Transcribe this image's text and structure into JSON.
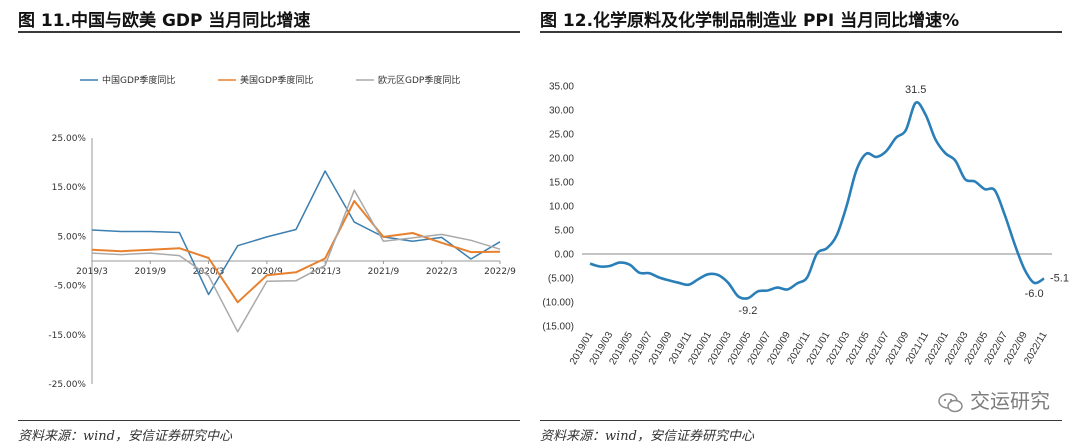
{
  "left": {
    "title": "图 11.中国与欧美 GDP 当月同比增速",
    "source": "资料来源：wind，安信证券研究中心"
  },
  "right": {
    "title": "图 12.化学原料及化学制品制造业 PPI 当月同比增速%",
    "source": "资料来源：wind，安信证券研究中心"
  },
  "watermark": "交运研究",
  "chart_data": [
    {
      "type": "line",
      "title": "图 11.中国与欧美 GDP 当月同比增速",
      "categories": [
        "2019/3",
        "2019/6",
        "2019/9",
        "2019/12",
        "2020/3",
        "2020/6",
        "2020/9",
        "2020/12",
        "2021/3",
        "2021/6",
        "2021/9",
        "2021/12",
        "2022/3",
        "2022/6",
        "2022/9"
      ],
      "x_tick_labels": [
        "2019/3",
        "2019/9",
        "2020/3",
        "2020/9",
        "2021/3",
        "2021/9",
        "2022/3",
        "2022/9"
      ],
      "y_tick_labels": [
        "25.00%",
        "15.00%",
        "5.00%",
        "-5.00%",
        "-15.00%",
        "-25.00%"
      ],
      "ylim": [
        -25,
        25
      ],
      "grid": false,
      "legend": "top",
      "colors": {
        "china": "#3b7fb0",
        "us": "#e8812f",
        "eu": "#a9a9a9"
      },
      "series": [
        {
          "name": "中国GDP季度同比",
          "values": [
            6.3,
            6.0,
            6.0,
            5.8,
            -6.8,
            3.1,
            4.9,
            6.4,
            18.3,
            7.9,
            4.9,
            4.0,
            4.8,
            0.4,
            3.9
          ]
        },
        {
          "name": "美国GDP季度同比",
          "values": [
            2.3,
            2.0,
            2.3,
            2.6,
            0.6,
            -8.4,
            -2.9,
            -2.3,
            0.5,
            12.2,
            4.9,
            5.7,
            3.7,
            1.8,
            1.9
          ]
        },
        {
          "name": "欧元区GDP季度同比",
          "values": [
            1.6,
            1.3,
            1.6,
            1.1,
            -3.0,
            -14.4,
            -4.1,
            -4.0,
            -0.9,
            14.4,
            4.0,
            4.7,
            5.4,
            4.2,
            2.4
          ]
        }
      ]
    },
    {
      "type": "line",
      "title": "图 12.化学原料及化学制品制造业 PPI 当月同比增速%",
      "x": [
        "2019/01",
        "2019/02",
        "2019/03",
        "2019/04",
        "2019/05",
        "2019/06",
        "2019/07",
        "2019/08",
        "2019/09",
        "2019/10",
        "2019/11",
        "2019/12",
        "2020/01",
        "2020/02",
        "2020/03",
        "2020/04",
        "2020/05",
        "2020/06",
        "2020/07",
        "2020/08",
        "2020/09",
        "2020/10",
        "2020/11",
        "2020/12",
        "2021/01",
        "2021/02",
        "2021/03",
        "2021/04",
        "2021/05",
        "2021/06",
        "2021/07",
        "2021/08",
        "2021/09",
        "2021/10",
        "2021/11",
        "2021/12",
        "2022/01",
        "2022/02",
        "2022/03",
        "2022/04",
        "2022/05",
        "2022/06",
        "2022/07",
        "2022/08",
        "2022/09",
        "2022/10",
        "2022/11"
      ],
      "x_tick_labels": [
        "2019/01",
        "2019/03",
        "2019/05",
        "2019/07",
        "2019/09",
        "2019/11",
        "2020/01",
        "2020/03",
        "2020/05",
        "2020/07",
        "2020/09",
        "2020/11",
        "2021/01",
        "2021/03",
        "2021/05",
        "2021/07",
        "2021/09",
        "2021/11",
        "2022/01",
        "2022/03",
        "2022/05",
        "2022/07",
        "2022/09",
        "2022/11"
      ],
      "y_tick_labels": [
        "35.00",
        "30.00",
        "25.00",
        "20.00",
        "15.00",
        "10.00",
        "5.00",
        "0.00",
        "(5.00)",
        "(10.00)",
        "(15.00)"
      ],
      "ylim": [
        -15,
        35
      ],
      "grid": false,
      "colors": {
        "line": "#2a7fb8",
        "zero": "#888888"
      },
      "values": [
        -2.0,
        -2.6,
        -2.5,
        -1.8,
        -2.2,
        -3.9,
        -4.0,
        -4.9,
        -5.5,
        -6.0,
        -6.4,
        -5.2,
        -4.2,
        -4.4,
        -6.0,
        -8.8,
        -9.2,
        -7.8,
        -7.6,
        -7.0,
        -7.4,
        -6.1,
        -4.9,
        0.1,
        1.2,
        3.9,
        10.0,
        17.5,
        20.9,
        20.2,
        21.4,
        24.2,
        25.8,
        31.5,
        29.0,
        23.9,
        21.0,
        19.5,
        15.6,
        15.1,
        13.5,
        13.3,
        8.3,
        2.2,
        -3.1,
        -6.0,
        -5.1
      ],
      "annotations": [
        {
          "label": "31.5",
          "x": "2021/10",
          "y": 31.5
        },
        {
          "label": "-9.2",
          "x": "2020/05",
          "y": -9.2
        },
        {
          "label": "-6.0",
          "x": "2022/10",
          "y": -6.0
        },
        {
          "label": "-5.1",
          "x": "2022/11",
          "y": -5.1
        }
      ]
    }
  ]
}
